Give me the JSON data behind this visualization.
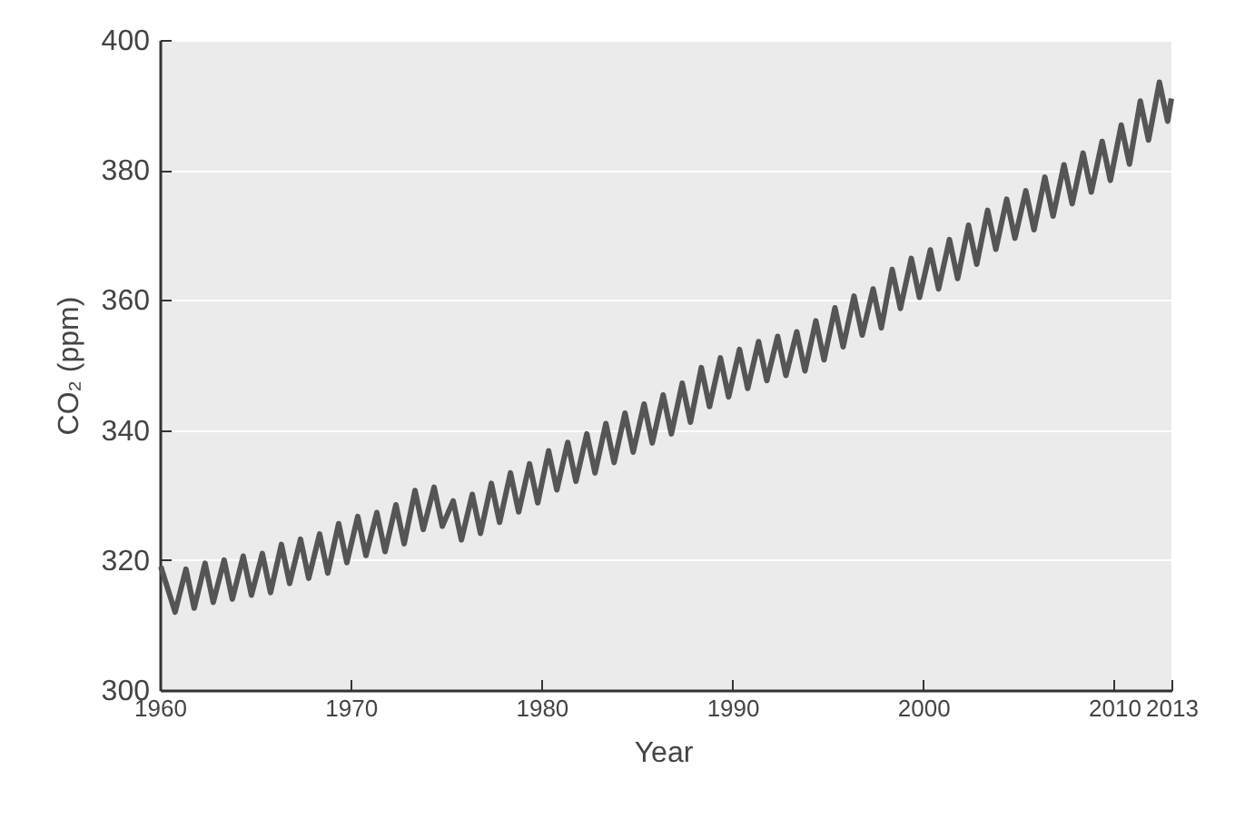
{
  "chart_data": {
    "type": "line",
    "xlabel": "Year",
    "ylabel": "CO₂ (ppm)",
    "xlim": [
      1960,
      2013
    ],
    "ylim": [
      300,
      400
    ],
    "xticks": [
      1960,
      1970,
      1980,
      1990,
      2000,
      2010,
      2013
    ],
    "yticks": [
      300,
      320,
      340,
      360,
      380,
      400
    ],
    "grid": "y",
    "marker": "none",
    "line_style": "solid",
    "series": [
      {
        "color": "#555555",
        "x": [
          1960.05,
          1960.8,
          1961.37,
          1961.8,
          1962.37,
          1962.8,
          1963.37,
          1963.8,
          1964.37,
          1964.8,
          1965.37,
          1965.8,
          1966.37,
          1966.8,
          1967.37,
          1967.8,
          1968.37,
          1968.8,
          1969.37,
          1969.8,
          1970.37,
          1970.8,
          1971.37,
          1971.8,
          1972.37,
          1972.8,
          1973.37,
          1973.8,
          1974.37,
          1974.8,
          1975.37,
          1975.8,
          1976.37,
          1976.8,
          1977.37,
          1977.8,
          1978.37,
          1978.8,
          1979.37,
          1979.8,
          1980.37,
          1980.8,
          1981.37,
          1981.8,
          1982.37,
          1982.8,
          1983.37,
          1983.8,
          1984.37,
          1984.8,
          1985.37,
          1985.8,
          1986.37,
          1986.8,
          1987.37,
          1987.8,
          1988.37,
          1988.8,
          1989.37,
          1989.8,
          1990.37,
          1990.8,
          1991.37,
          1991.8,
          1992.37,
          1992.8,
          1993.37,
          1993.8,
          1994.37,
          1994.8,
          1995.37,
          1995.8,
          1996.37,
          1996.8,
          1997.37,
          1997.8,
          1998.37,
          1998.8,
          1999.37,
          1999.8,
          2000.37,
          2000.8,
          2001.37,
          2001.8,
          2002.37,
          2002.8,
          2003.37,
          2003.8,
          2004.37,
          2004.8,
          2005.37,
          2005.8,
          2006.37,
          2006.8,
          2007.37,
          2007.8,
          2008.37,
          2008.8,
          2009.37,
          2009.8,
          2010.37,
          2010.8,
          2011.37,
          2011.8,
          2012.37,
          2012.8,
          2013.0
        ],
        "values": [
          319,
          312,
          318.6,
          312.6,
          319.5,
          313.5,
          320.0,
          314.0,
          320.6,
          314.6,
          321.0,
          315.0,
          322.4,
          316.4,
          323.2,
          317.2,
          324.0,
          318.0,
          325.6,
          319.6,
          326.7,
          320.7,
          327.3,
          321.3,
          328.5,
          322.5,
          330.7,
          324.7,
          331.2,
          325.2,
          329.1,
          323.1,
          330.1,
          324.1,
          331.8,
          325.8,
          333.4,
          327.4,
          334.8,
          328.8,
          336.8,
          330.8,
          338.1,
          332.1,
          339.4,
          333.4,
          341.0,
          335.0,
          342.6,
          336.6,
          344.0,
          338.0,
          345.4,
          339.4,
          347.2,
          341.2,
          349.6,
          343.6,
          351.1,
          345.1,
          352.4,
          346.4,
          353.6,
          347.6,
          354.4,
          348.4,
          355.1,
          349.1,
          356.8,
          350.8,
          358.8,
          352.8,
          360.6,
          354.6,
          361.7,
          355.7,
          364.7,
          358.7,
          366.4,
          360.4,
          367.7,
          361.7,
          369.3,
          363.3,
          371.5,
          365.5,
          373.8,
          367.8,
          375.5,
          369.5,
          376.8,
          370.8,
          378.9,
          372.9,
          380.8,
          374.8,
          382.6,
          376.6,
          384.4,
          378.4,
          386.9,
          380.9,
          390.6,
          384.6,
          393.5,
          387.5,
          391
        ]
      }
    ]
  }
}
